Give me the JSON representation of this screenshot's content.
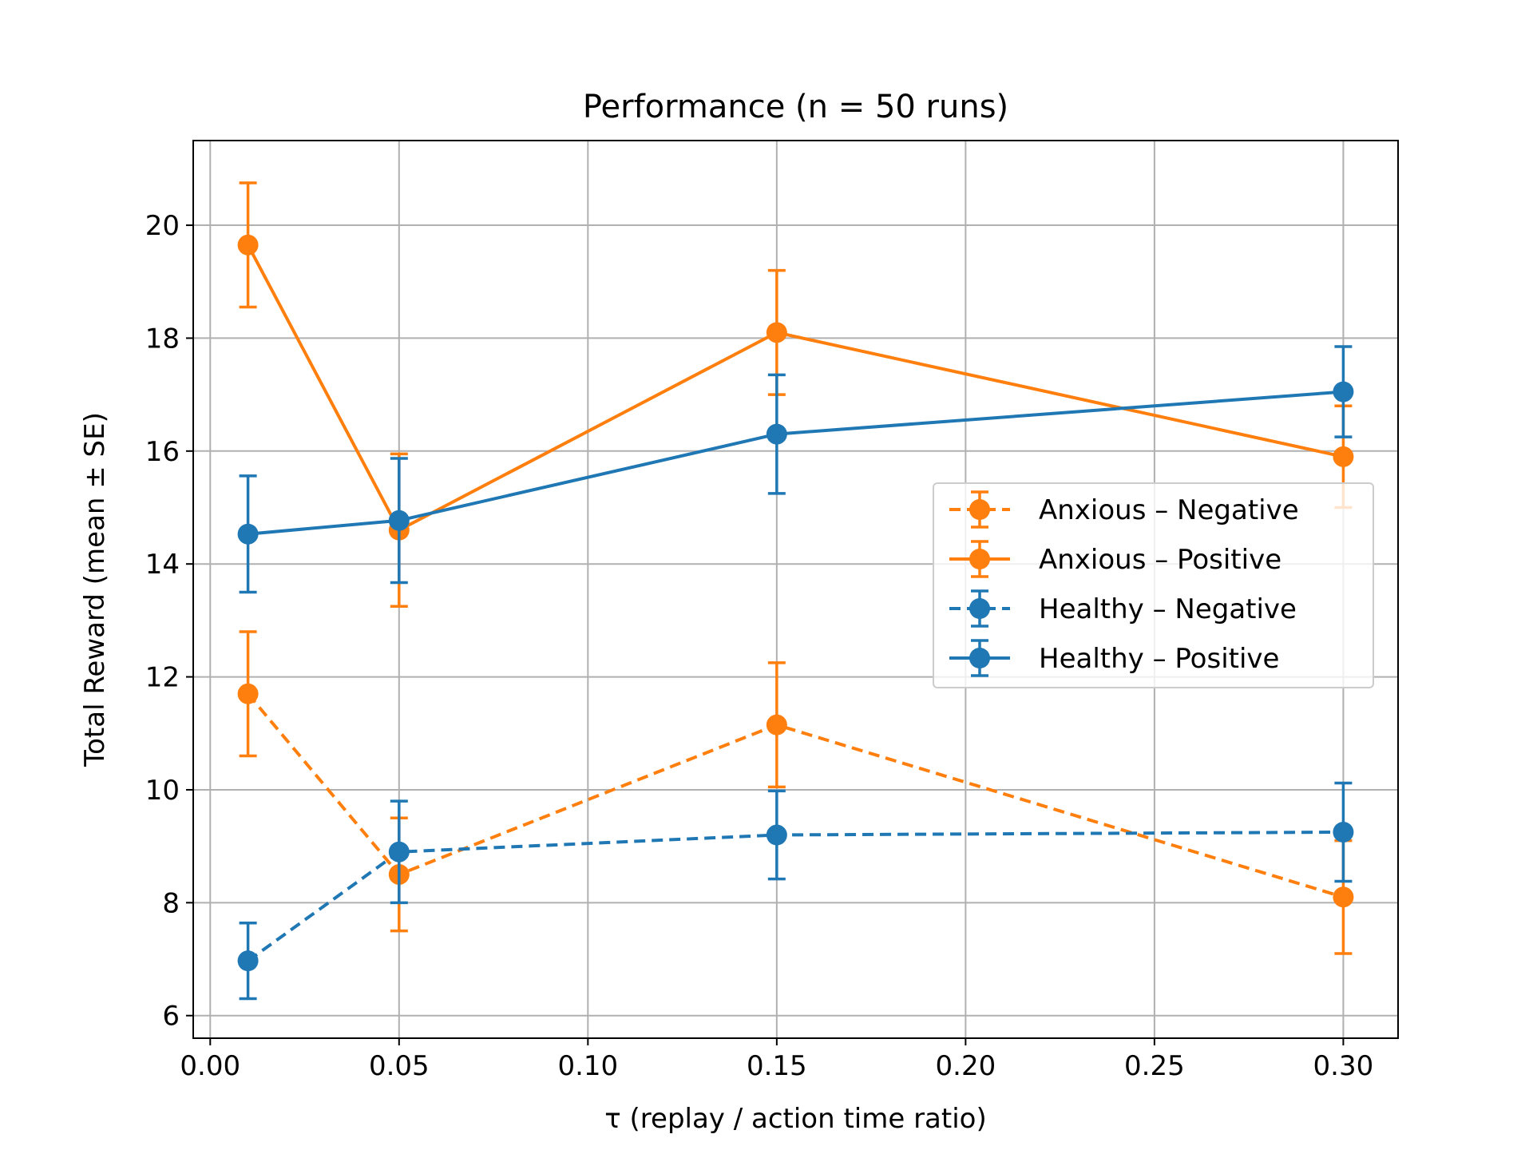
{
  "chart_data": {
    "type": "line",
    "title": "Performance  (n = 50 runs)",
    "xlabel": "τ  (replay / action time ratio)",
    "ylabel": "Total Reward   (mean ± SE)",
    "xlim": [
      -0.0045,
      0.3145
    ],
    "ylim": [
      5.6,
      21.5
    ],
    "xticks": [
      0.0,
      0.05,
      0.1,
      0.15,
      0.2,
      0.25,
      0.3
    ],
    "xtick_labels": [
      "0.00",
      "0.05",
      "0.10",
      "0.15",
      "0.20",
      "0.25",
      "0.30"
    ],
    "yticks": [
      6,
      8,
      10,
      12,
      14,
      16,
      18,
      20
    ],
    "ytick_labels": [
      "6",
      "8",
      "10",
      "12",
      "14",
      "16",
      "18",
      "20"
    ],
    "grid": true,
    "legend_position": "center-right",
    "x": [
      0.01,
      0.05,
      0.15,
      0.3
    ],
    "series": [
      {
        "name": "Anxious – Negative",
        "color": "#ff7f0e",
        "linestyle": "dashed",
        "values": [
          11.7,
          8.5,
          11.15,
          8.1
        ],
        "errors": [
          1.1,
          1.0,
          1.1,
          1.0
        ]
      },
      {
        "name": "Anxious – Positive",
        "color": "#ff7f0e",
        "linestyle": "solid",
        "values": [
          19.65,
          14.6,
          18.1,
          15.9
        ],
        "errors": [
          1.1,
          1.35,
          1.1,
          0.9
        ]
      },
      {
        "name": "Healthy – Negative",
        "color": "#1f77b4",
        "linestyle": "dashed",
        "values": [
          6.97,
          8.9,
          9.2,
          9.25
        ],
        "errors": [
          0.67,
          0.9,
          0.78,
          0.87
        ]
      },
      {
        "name": "Healthy – Positive",
        "color": "#1f77b4",
        "linestyle": "solid",
        "values": [
          14.53,
          14.77,
          16.3,
          17.05
        ],
        "errors": [
          1.03,
          1.1,
          1.05,
          0.8
        ]
      }
    ]
  }
}
